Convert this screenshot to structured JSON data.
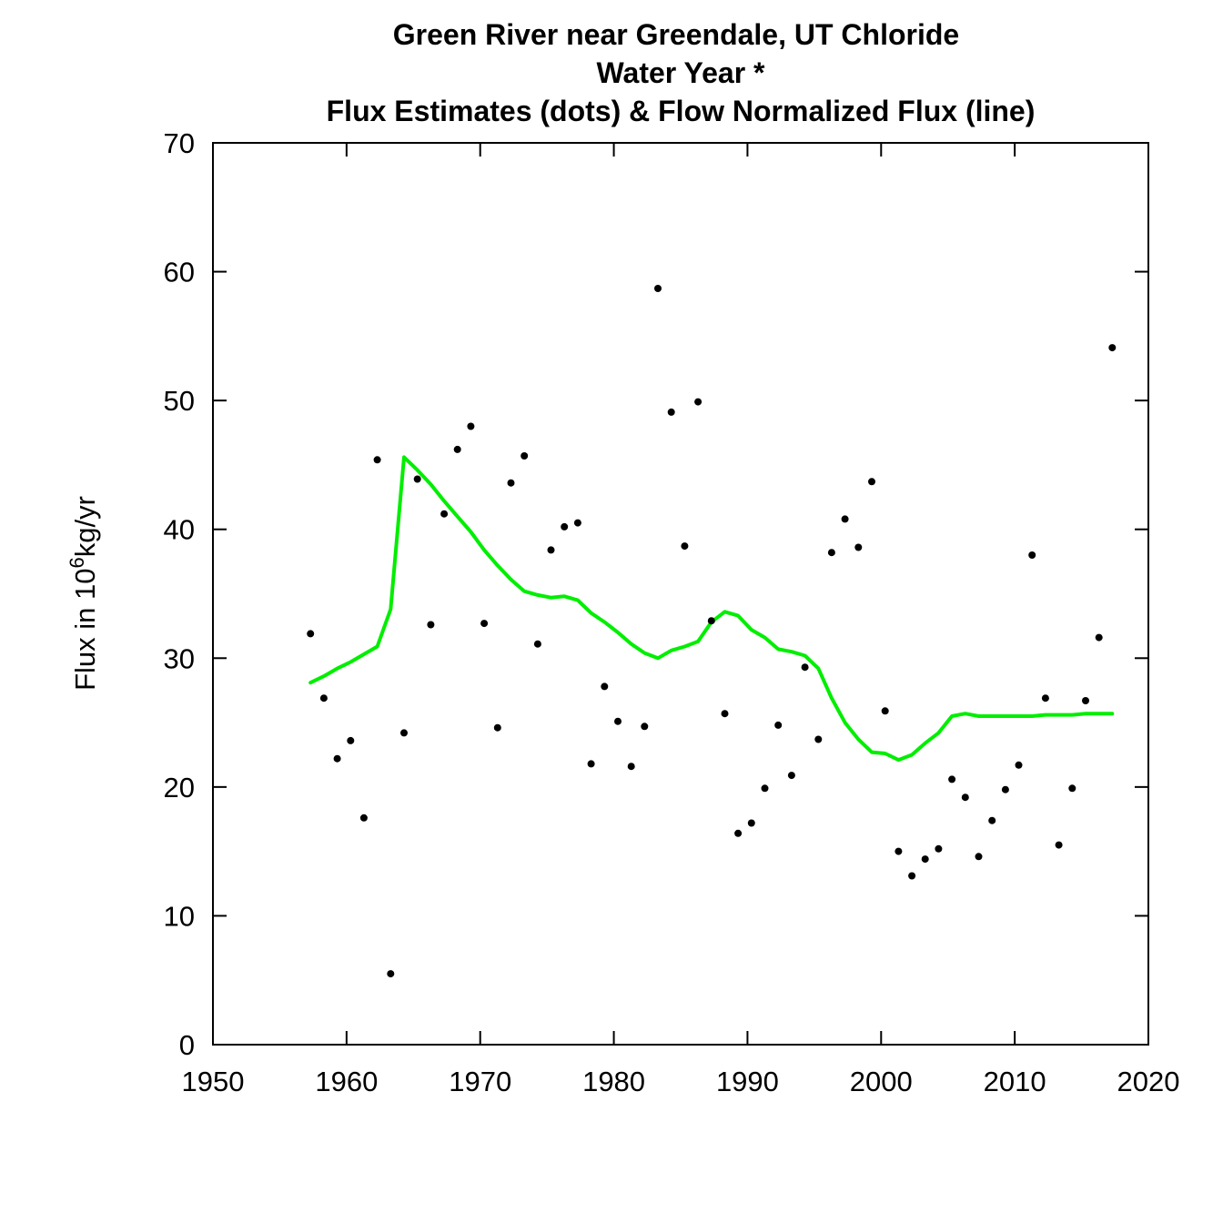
{
  "chart_data": {
    "type": "scatter",
    "title_lines": [
      "Green River near Greendale, UT   Chloride",
      "Water Year *",
      "Flux Estimates (dots) & Flow Normalized Flux (line)"
    ],
    "xlabel": "",
    "ylabel_prefix": "Flux in 10",
    "ylabel_superscript": "6",
    "ylabel_suffix": "kg/yr",
    "xlim": [
      1950,
      2020
    ],
    "ylim": [
      0,
      70
    ],
    "xticks": [
      "1950",
      "1960",
      "1970",
      "1980",
      "1990",
      "2000",
      "2010",
      "2020"
    ],
    "yticks": [
      "0",
      "10",
      "20",
      "30",
      "40",
      "50",
      "60",
      "70"
    ],
    "grid": false,
    "legend": "none",
    "colors": {
      "dots": "#000000",
      "line": "#00ee00",
      "axes": "#000000"
    },
    "series": [
      {
        "kind": "points",
        "x": [
          1957.3,
          1958.3,
          1959.3,
          1960.3,
          1961.3,
          1962.3,
          1963.3,
          1964.3,
          1965.3,
          1966.3,
          1967.3,
          1968.3,
          1969.3,
          1970.3,
          1971.3,
          1972.3,
          1973.3,
          1974.3,
          1975.3,
          1976.3,
          1977.3,
          1978.3,
          1979.3,
          1980.3,
          1981.3,
          1982.3,
          1983.3,
          1984.3,
          1985.3,
          1986.3,
          1987.3,
          1988.3,
          1989.3,
          1990.3,
          1991.3,
          1992.3,
          1993.3,
          1994.3,
          1995.3,
          1996.3,
          1997.3,
          1998.3,
          1999.3,
          2000.3,
          2001.3,
          2002.3,
          2003.3,
          2004.3,
          2005.3,
          2006.3,
          2007.3,
          2008.3,
          2009.3,
          2010.3,
          2011.3,
          2012.3,
          2013.3,
          2014.3,
          2015.3,
          2016.3,
          2017.3
        ],
        "y": [
          31.9,
          26.9,
          22.2,
          23.6,
          17.6,
          45.4,
          5.5,
          24.2,
          43.9,
          32.6,
          41.2,
          46.2,
          48.0,
          32.7,
          24.6,
          43.6,
          45.7,
          31.1,
          38.4,
          40.2,
          40.5,
          21.8,
          27.8,
          25.1,
          21.6,
          24.7,
          58.7,
          49.1,
          38.7,
          49.9,
          32.9,
          25.7,
          16.4,
          17.2,
          19.9,
          24.8,
          20.9,
          29.3,
          23.7,
          38.2,
          40.8,
          38.6,
          43.7,
          25.9,
          15.0,
          13.1,
          14.4,
          15.2,
          20.6,
          19.2,
          14.6,
          17.4,
          19.8,
          21.7,
          38.0,
          26.9,
          15.5,
          19.9,
          26.7,
          31.6,
          54.1
        ]
      },
      {
        "kind": "line",
        "x": [
          1957.3,
          1958.3,
          1959.3,
          1960.3,
          1961.3,
          1962.3,
          1963.3,
          1964.3,
          1965.3,
          1966.3,
          1967.3,
          1968.3,
          1969.3,
          1970.3,
          1971.3,
          1972.3,
          1973.3,
          1974.3,
          1975.3,
          1976.3,
          1977.3,
          1978.3,
          1979.3,
          1980.3,
          1981.3,
          1982.3,
          1983.3,
          1984.3,
          1985.3,
          1986.3,
          1987.3,
          1988.3,
          1989.3,
          1990.3,
          1991.3,
          1992.3,
          1993.3,
          1994.3,
          1995.3,
          1996.3,
          1997.3,
          1998.3,
          1999.3,
          2000.3,
          2001.3,
          2002.3,
          2003.3,
          2004.3,
          2005.3,
          2006.3,
          2007.3,
          2008.3,
          2009.3,
          2010.3,
          2011.3,
          2012.3,
          2013.3,
          2014.3,
          2015.3,
          2016.3,
          2017.3
        ],
        "y": [
          28.1,
          28.6,
          29.2,
          29.7,
          30.3,
          30.9,
          33.8,
          45.6,
          44.6,
          43.5,
          42.2,
          41.0,
          39.8,
          38.4,
          37.2,
          36.1,
          35.2,
          34.9,
          34.7,
          34.8,
          34.5,
          33.5,
          32.8,
          32.0,
          31.1,
          30.4,
          30.0,
          30.6,
          30.9,
          31.3,
          32.8,
          33.6,
          33.3,
          32.2,
          31.6,
          30.7,
          30.5,
          30.2,
          29.2,
          26.9,
          25.0,
          23.7,
          22.7,
          22.6,
          22.1,
          22.5,
          23.4,
          24.2,
          25.5,
          25.7,
          25.5,
          25.5,
          25.5,
          25.5,
          25.5,
          25.6,
          25.6,
          25.6,
          25.7,
          25.7,
          25.7
        ]
      }
    ]
  }
}
